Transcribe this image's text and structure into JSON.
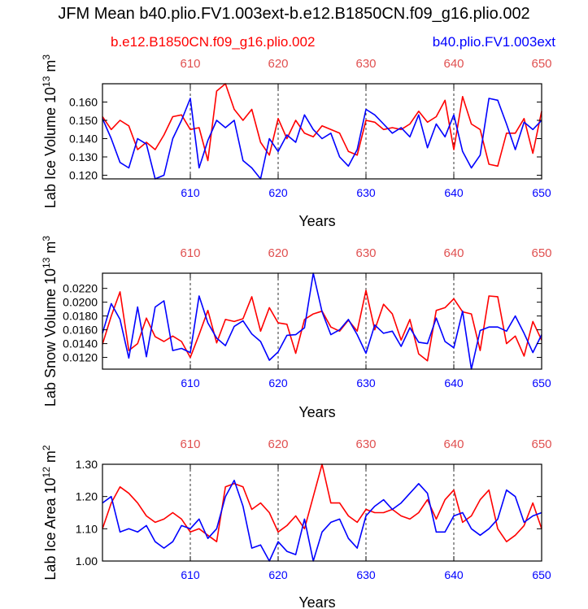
{
  "title": "JFM Mean b40.plio.FV1.003ext-b.e12.B1850CN.f09_g16.plio.002",
  "legend": {
    "left": "b.e12.B1850CN.f09_g16.plio.002",
    "right": "b40.plio.FV1.003ext"
  },
  "colors": {
    "red": "#ff0000",
    "blue": "#0000ff",
    "top_tick": "#e05050"
  },
  "chart_data": [
    {
      "type": "line",
      "ylabel": "Lab Ice Volume",
      "ylabel_exp": "13",
      "ylabel_unit_exp": "3",
      "xlabel": "Years",
      "xlim": [
        600,
        650
      ],
      "ylim": [
        0.118,
        0.17
      ],
      "yticks": [
        0.12,
        0.13,
        0.14,
        0.15,
        0.16
      ],
      "ytick_labels": [
        "0.120",
        "0.130",
        "0.140",
        "0.150",
        "0.160"
      ],
      "xticks": [
        610,
        620,
        630,
        640,
        650
      ],
      "x": [
        600,
        601,
        602,
        603,
        604,
        605,
        606,
        607,
        608,
        609,
        610,
        611,
        612,
        613,
        614,
        615,
        616,
        617,
        618,
        619,
        620,
        621,
        622,
        623,
        624,
        625,
        626,
        627,
        628,
        629,
        630,
        631,
        632,
        633,
        634,
        635,
        636,
        637,
        638,
        639,
        640,
        641,
        642,
        643,
        644,
        645,
        646,
        647,
        648,
        649,
        650
      ],
      "series": [
        {
          "name": "b.e12.B1850CN.f09_g16.plio.002",
          "color": "red",
          "values": [
            0.152,
            0.145,
            0.15,
            0.147,
            0.134,
            0.138,
            0.134,
            0.142,
            0.152,
            0.153,
            0.145,
            0.146,
            0.128,
            0.166,
            0.17,
            0.156,
            0.15,
            0.156,
            0.138,
            0.131,
            0.151,
            0.14,
            0.15,
            0.143,
            0.141,
            0.147,
            0.145,
            0.143,
            0.133,
            0.131,
            0.15,
            0.149,
            0.145,
            0.146,
            0.145,
            0.148,
            0.155,
            0.149,
            0.152,
            0.161,
            0.134,
            0.163,
            0.148,
            0.145,
            0.126,
            0.125,
            0.143,
            0.143,
            0.151,
            0.132,
            0.155
          ]
        },
        {
          "name": "b40.plio.FV1.003ext",
          "color": "blue",
          "values": [
            0.151,
            0.14,
            0.127,
            0.124,
            0.14,
            0.137,
            0.118,
            0.12,
            0.14,
            0.15,
            0.162,
            0.124,
            0.139,
            0.15,
            0.146,
            0.15,
            0.128,
            0.124,
            0.118,
            0.14,
            0.133,
            0.142,
            0.138,
            0.153,
            0.145,
            0.14,
            0.143,
            0.13,
            0.125,
            0.134,
            0.156,
            0.153,
            0.148,
            0.143,
            0.146,
            0.141,
            0.153,
            0.135,
            0.148,
            0.141,
            0.153,
            0.133,
            0.124,
            0.131,
            0.162,
            0.161,
            0.148,
            0.134,
            0.149,
            0.145,
            0.15
          ]
        }
      ]
    },
    {
      "type": "line",
      "ylabel": "Lab Snow Volume",
      "ylabel_exp": "13",
      "ylabel_unit_exp": "3",
      "xlabel": "Years",
      "xlim": [
        600,
        650
      ],
      "ylim": [
        0.0103,
        0.0242
      ],
      "yticks": [
        0.012,
        0.014,
        0.016,
        0.018,
        0.02,
        0.022
      ],
      "ytick_labels": [
        "0.0120",
        "0.0140",
        "0.0160",
        "0.0180",
        "0.0200",
        "0.0220"
      ],
      "xticks": [
        610,
        620,
        630,
        640,
        650
      ],
      "x": [
        600,
        601,
        602,
        603,
        604,
        605,
        606,
        607,
        608,
        609,
        610,
        611,
        612,
        613,
        614,
        615,
        616,
        617,
        618,
        619,
        620,
        621,
        622,
        623,
        624,
        625,
        626,
        627,
        628,
        629,
        630,
        631,
        632,
        633,
        634,
        635,
        636,
        637,
        638,
        639,
        640,
        641,
        642,
        643,
        644,
        645,
        646,
        647,
        648,
        649,
        650
      ],
      "series": [
        {
          "name": "b.e12.B1850CN.f09_g16.plio.002",
          "color": "red",
          "values": [
            0.0139,
            0.018,
            0.0215,
            0.013,
            0.014,
            0.0177,
            0.015,
            0.0143,
            0.0151,
            0.0143,
            0.012,
            0.0153,
            0.0188,
            0.0141,
            0.0175,
            0.0172,
            0.0176,
            0.0208,
            0.0158,
            0.0192,
            0.017,
            0.0168,
            0.0126,
            0.0175,
            0.0183,
            0.0187,
            0.0164,
            0.0158,
            0.0174,
            0.0158,
            0.0217,
            0.016,
            0.0197,
            0.0183,
            0.0145,
            0.0175,
            0.0125,
            0.0115,
            0.0188,
            0.0192,
            0.0205,
            0.0186,
            0.0183,
            0.013,
            0.0209,
            0.0208,
            0.014,
            0.0151,
            0.0122,
            0.0172,
            0.0145
          ]
        },
        {
          "name": "b40.plio.FV1.003ext",
          "color": "blue",
          "values": [
            0.0155,
            0.0198,
            0.0175,
            0.0119,
            0.0193,
            0.0121,
            0.0193,
            0.0202,
            0.013,
            0.0133,
            0.0127,
            0.0209,
            0.017,
            0.0148,
            0.0137,
            0.0165,
            0.0173,
            0.0154,
            0.0143,
            0.0116,
            0.0128,
            0.0152,
            0.0153,
            0.0163,
            0.0242,
            0.0186,
            0.0153,
            0.016,
            0.0175,
            0.0153,
            0.0126,
            0.0167,
            0.0155,
            0.0158,
            0.0136,
            0.0163,
            0.0142,
            0.014,
            0.0177,
            0.0143,
            0.0134,
            0.0187,
            0.0103,
            0.0159,
            0.0164,
            0.0164,
            0.0158,
            0.018,
            0.0155,
            0.0127,
            0.0153
          ]
        }
      ]
    },
    {
      "type": "line",
      "ylabel": "Lab Ice Area",
      "ylabel_exp": "12",
      "ylabel_unit_exp": "2",
      "xlabel": "Years",
      "xlim": [
        600,
        650
      ],
      "ylim": [
        1.0,
        1.3
      ],
      "yticks": [
        1.0,
        1.1,
        1.2,
        1.3
      ],
      "ytick_labels": [
        "1.00",
        "1.10",
        "1.20",
        "1.30"
      ],
      "xticks": [
        610,
        620,
        630,
        640,
        650
      ],
      "x": [
        600,
        601,
        602,
        603,
        604,
        605,
        606,
        607,
        608,
        609,
        610,
        611,
        612,
        613,
        614,
        615,
        616,
        617,
        618,
        619,
        620,
        621,
        622,
        623,
        624,
        625,
        626,
        627,
        628,
        629,
        630,
        631,
        632,
        633,
        634,
        635,
        636,
        637,
        638,
        639,
        640,
        641,
        642,
        643,
        644,
        645,
        646,
        647,
        648,
        649,
        650
      ],
      "series": [
        {
          "name": "b.e12.B1850CN.f09_g16.plio.002",
          "color": "red",
          "values": [
            1.1,
            1.18,
            1.23,
            1.21,
            1.18,
            1.14,
            1.12,
            1.13,
            1.15,
            1.13,
            1.09,
            1.1,
            1.08,
            1.06,
            1.23,
            1.24,
            1.23,
            1.16,
            1.18,
            1.15,
            1.09,
            1.11,
            1.14,
            1.1,
            1.2,
            1.3,
            1.18,
            1.18,
            1.14,
            1.12,
            1.16,
            1.15,
            1.15,
            1.16,
            1.14,
            1.13,
            1.15,
            1.19,
            1.13,
            1.19,
            1.22,
            1.12,
            1.14,
            1.19,
            1.22,
            1.1,
            1.06,
            1.08,
            1.11,
            1.18,
            1.1
          ]
        },
        {
          "name": "b40.plio.FV1.003ext",
          "color": "blue",
          "values": [
            1.18,
            1.2,
            1.09,
            1.1,
            1.09,
            1.11,
            1.06,
            1.04,
            1.06,
            1.11,
            1.1,
            1.13,
            1.07,
            1.1,
            1.2,
            1.25,
            1.17,
            1.04,
            1.05,
            1.0,
            1.06,
            1.03,
            1.02,
            1.13,
            1.0,
            1.09,
            1.12,
            1.13,
            1.07,
            1.04,
            1.14,
            1.17,
            1.19,
            1.16,
            1.18,
            1.21,
            1.24,
            1.21,
            1.09,
            1.09,
            1.14,
            1.15,
            1.1,
            1.08,
            1.1,
            1.13,
            1.22,
            1.2,
            1.12,
            1.14,
            1.15
          ]
        }
      ]
    }
  ]
}
